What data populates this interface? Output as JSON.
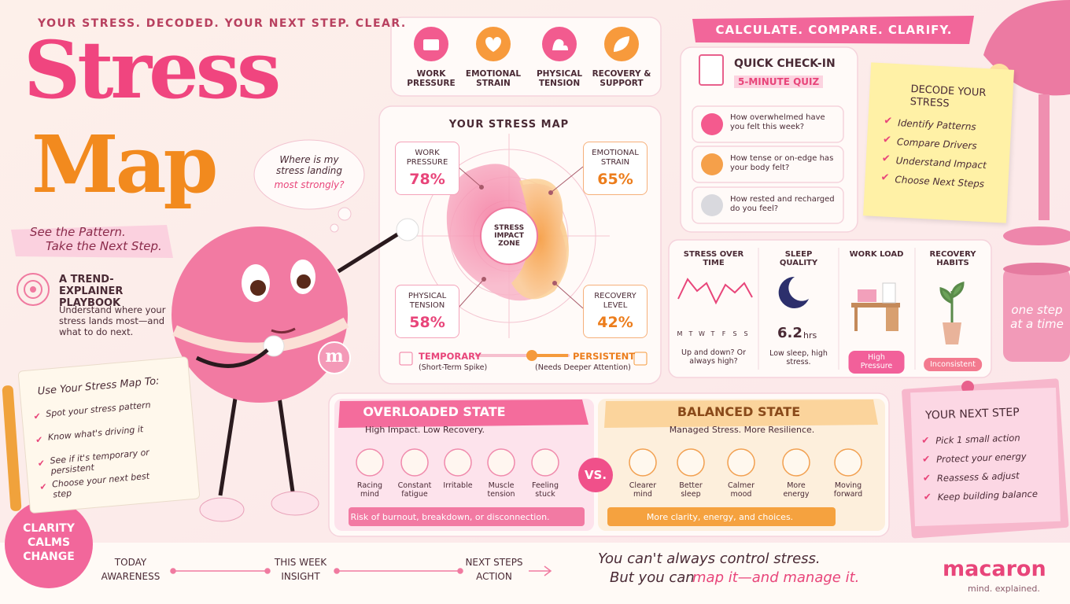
{
  "header": {
    "tagline": "YOUR STRESS. DECODED. YOUR NEXT STEP. CLEAR.",
    "title_line1": "Stress",
    "title_line2": "Map",
    "subtitle": [
      "See the Pattern.",
      "Take the Next Step."
    ]
  },
  "playbook": {
    "title": "A TREND-EXPLAINER PLAYBOOK",
    "text": "Understand where your stress lands most—and what to do next."
  },
  "thought_bubble": {
    "text": "Where is my stress landing",
    "emphasis": "most strongly?"
  },
  "mascot_badge": "m",
  "notepad": {
    "title": "Use Your Stress Map To:",
    "items": [
      "Spot your stress pattern",
      "Know what's driving it",
      "See if it's temporary or persistent",
      "Choose your next best step"
    ]
  },
  "badge": [
    "CLARITY",
    "CALMS",
    "CHANGE"
  ],
  "drivers": [
    "WORK PRESSURE",
    "EMOTIONAL STRAIN",
    "PHYSICAL TENSION",
    "RECOVERY & SUPPORT"
  ],
  "stress_map": {
    "title": "YOUR STRESS MAP",
    "center": "STRESS IMPACT ZONE",
    "zones": [
      {
        "label": "WORK PRESSURE",
        "value": "78%"
      },
      {
        "label": "EMOTIONAL STRAIN",
        "value": "65%"
      },
      {
        "label": "PHYSICAL TENSION",
        "value": "58%"
      },
      {
        "label": "RECOVERY LEVEL",
        "value": "42%"
      }
    ],
    "scale": {
      "left": {
        "label": "TEMPORARY",
        "note": "(Short-Term Spike)"
      },
      "right": {
        "label": "PERSISTENT",
        "note": "(Needs Deeper Attention)"
      }
    }
  },
  "banner": "CALCULATE. COMPARE. CLARIFY.",
  "quiz": {
    "title": "QUICK CHECK-IN",
    "tag": "5-MINUTE QUIZ",
    "questions": [
      "How overwhelmed have you felt this week?",
      "How tense or on-edge has your body felt?",
      "How rested and recharged do you feel?"
    ]
  },
  "decode": {
    "title": "DECODE YOUR STRESS",
    "items": [
      "Identify Patterns",
      "Compare Drivers",
      "Understand Impact",
      "Choose Next Steps"
    ]
  },
  "mug": "one step at a time",
  "insights": [
    {
      "title": "STRESS OVER TIME",
      "days": [
        "M",
        "T",
        "W",
        "T",
        "F",
        "S",
        "S"
      ],
      "note": "Up and down? Or always high?"
    },
    {
      "title": "SLEEP QUALITY",
      "value": "6.2",
      "unit": "hrs",
      "note": "Low sleep, high stress."
    },
    {
      "title": "WORK LOAD",
      "tag": "High Pressure"
    },
    {
      "title": "RECOVERY HABITS",
      "tag": "Inconsistent"
    }
  ],
  "next_step": {
    "title": "YOUR NEXT STEP",
    "items": [
      "Pick 1 small action",
      "Protect your energy",
      "Reassess & adjust",
      "Keep building balance"
    ]
  },
  "comparison": {
    "vs": "VS.",
    "overloaded": {
      "title": "OVERLOADED STATE",
      "subtitle": "High Impact. Low Recovery.",
      "symptoms": [
        "Racing mind",
        "Constant fatigue",
        "Irritable",
        "Muscle tension",
        "Feeling stuck"
      ],
      "outcome": "Risk of burnout, breakdown, or disconnection."
    },
    "balanced": {
      "title": "BALANCED STATE",
      "subtitle": "Managed Stress. More Resilience.",
      "symptoms": [
        "Clearer mind",
        "Better sleep",
        "Calmer mood",
        "More energy",
        "Moving forward"
      ],
      "outcome": "More clarity, energy, and choices."
    }
  },
  "timeline": [
    {
      "when": "TODAY",
      "what": "AWARENESS"
    },
    {
      "when": "THIS WEEK",
      "what": "INSIGHT"
    },
    {
      "when": "NEXT STEPS",
      "what": "ACTION"
    }
  ],
  "quote": {
    "line1": "You can't always control stress.",
    "line2": "But you can",
    "emphasis": "map it—and manage it."
  },
  "brand": {
    "name": "macaron",
    "tagline": "mind. explained."
  }
}
